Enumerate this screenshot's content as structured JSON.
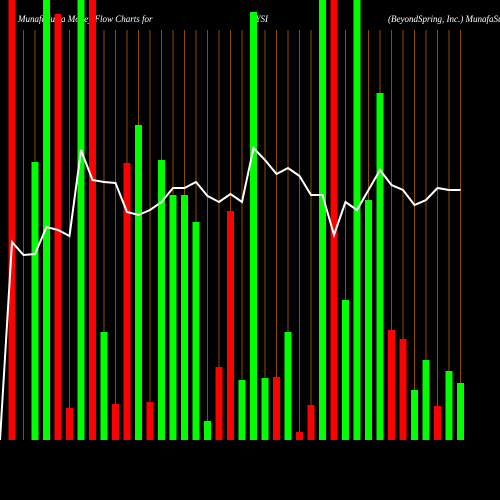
{
  "chart_data": {
    "type": "bar",
    "title_left": "MunafaSutra Money Flow Charts for",
    "title_symbol": "BYSI",
    "title_right": "(BeyondSpring, Inc.) MunafaSutra.com",
    "ylim": [
      0,
      440
    ],
    "series": [
      {
        "name": "Money flow",
        "values": [
          440,
          0,
          278,
          440,
          426,
          32,
          440,
          440,
          108,
          36,
          277,
          315,
          38,
          280,
          245,
          245,
          218,
          19,
          73,
          229,
          60,
          428,
          62,
          63,
          108,
          8,
          35,
          440,
          440,
          140,
          440,
          240,
          347,
          110,
          101,
          50,
          80,
          34,
          69,
          57
        ],
        "colors": [
          "#ff0000",
          "#00ff00",
          "#00ff00",
          "#00ff00",
          "#ff0000",
          "#ff0000",
          "#00ff00",
          "#ff0000",
          "#00ff00",
          "#ff0000",
          "#ff0000",
          "#00ff00",
          "#ff0000",
          "#00ff00",
          "#00ff00",
          "#00ff00",
          "#00ff00",
          "#00ff00",
          "#ff0000",
          "#ff0000",
          "#00ff00",
          "#00ff00",
          "#00ff00",
          "#ff0000",
          "#00ff00",
          "#ff0000",
          "#ff0000",
          "#00ff00",
          "#ff0000",
          "#00ff00",
          "#00ff00",
          "#00ff00",
          "#00ff00",
          "#ff0000",
          "#ff0000",
          "#00ff00",
          "#00ff00",
          "#ff0000",
          "#00ff00",
          "#00ff00"
        ]
      },
      {
        "name": "Price",
        "type": "line",
        "color": "#ffffff",
        "values": [
          198,
          185,
          186,
          213,
          210,
          204,
          290,
          260,
          258,
          257,
          228,
          225,
          230,
          238,
          252,
          252,
          258,
          244,
          238,
          246,
          238,
          292,
          280,
          266,
          272,
          264,
          245,
          245,
          205,
          238,
          230,
          250,
          270,
          255,
          250,
          235,
          240,
          252,
          250,
          250
        ]
      }
    ],
    "gridline_color": "#b06000"
  }
}
